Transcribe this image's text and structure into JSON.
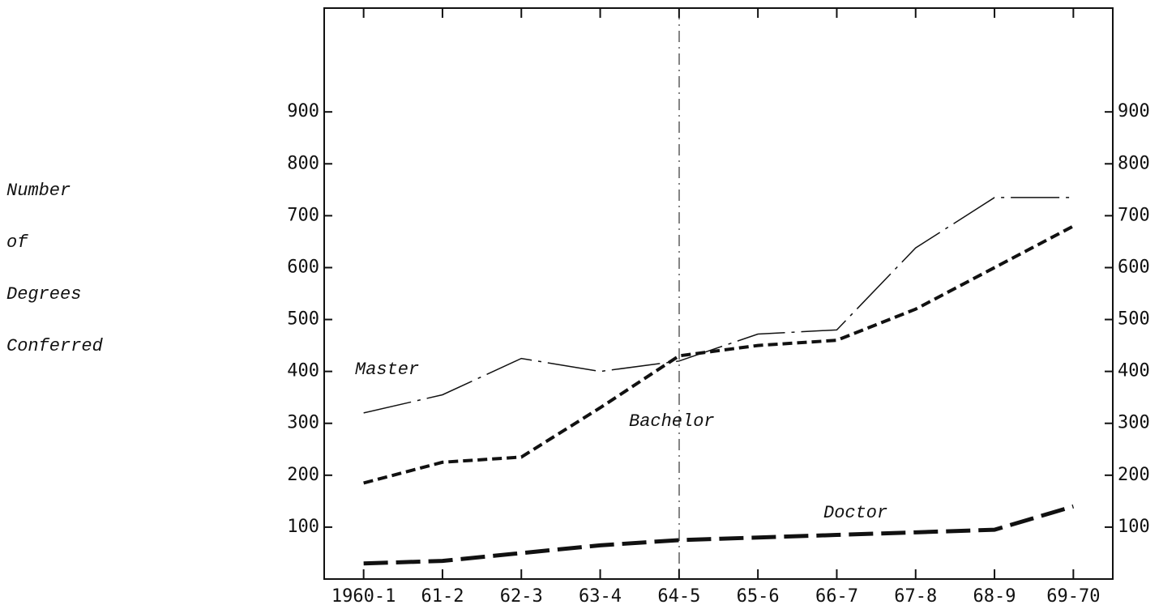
{
  "chart_data": {
    "type": "line",
    "y_label_lines": [
      "Number",
      "of",
      "Degrees",
      "Conferred"
    ],
    "categories": [
      "1960-1",
      "61-2",
      "62-3",
      "63-4",
      "64-5",
      "65-6",
      "66-7",
      "67-8",
      "68-9",
      "69-70"
    ],
    "series": [
      {
        "name": "Master",
        "color": "#111111",
        "dash": "long-dash-dot",
        "values": [
          320,
          355,
          425,
          400,
          420,
          472,
          480,
          638,
          735,
          735
        ]
      },
      {
        "name": "Bachelor",
        "color": "#111111",
        "dash": "short-dash",
        "values": [
          185,
          225,
          235,
          330,
          430,
          450,
          460,
          520,
          600,
          680
        ]
      },
      {
        "name": "Doctor",
        "color": "#111111",
        "dash": "long-dash",
        "values": [
          30,
          35,
          50,
          65,
          75,
          80,
          85,
          90,
          95,
          140
        ]
      }
    ],
    "ylim": [
      0,
      1100
    ],
    "yticks": [
      100,
      200,
      300,
      400,
      500,
      600,
      700,
      800,
      900
    ],
    "y2lim": [
      0,
      1100
    ],
    "y2ticks": [
      100,
      200,
      300,
      400,
      500,
      600,
      700,
      800,
      900
    ],
    "grid": false
  }
}
